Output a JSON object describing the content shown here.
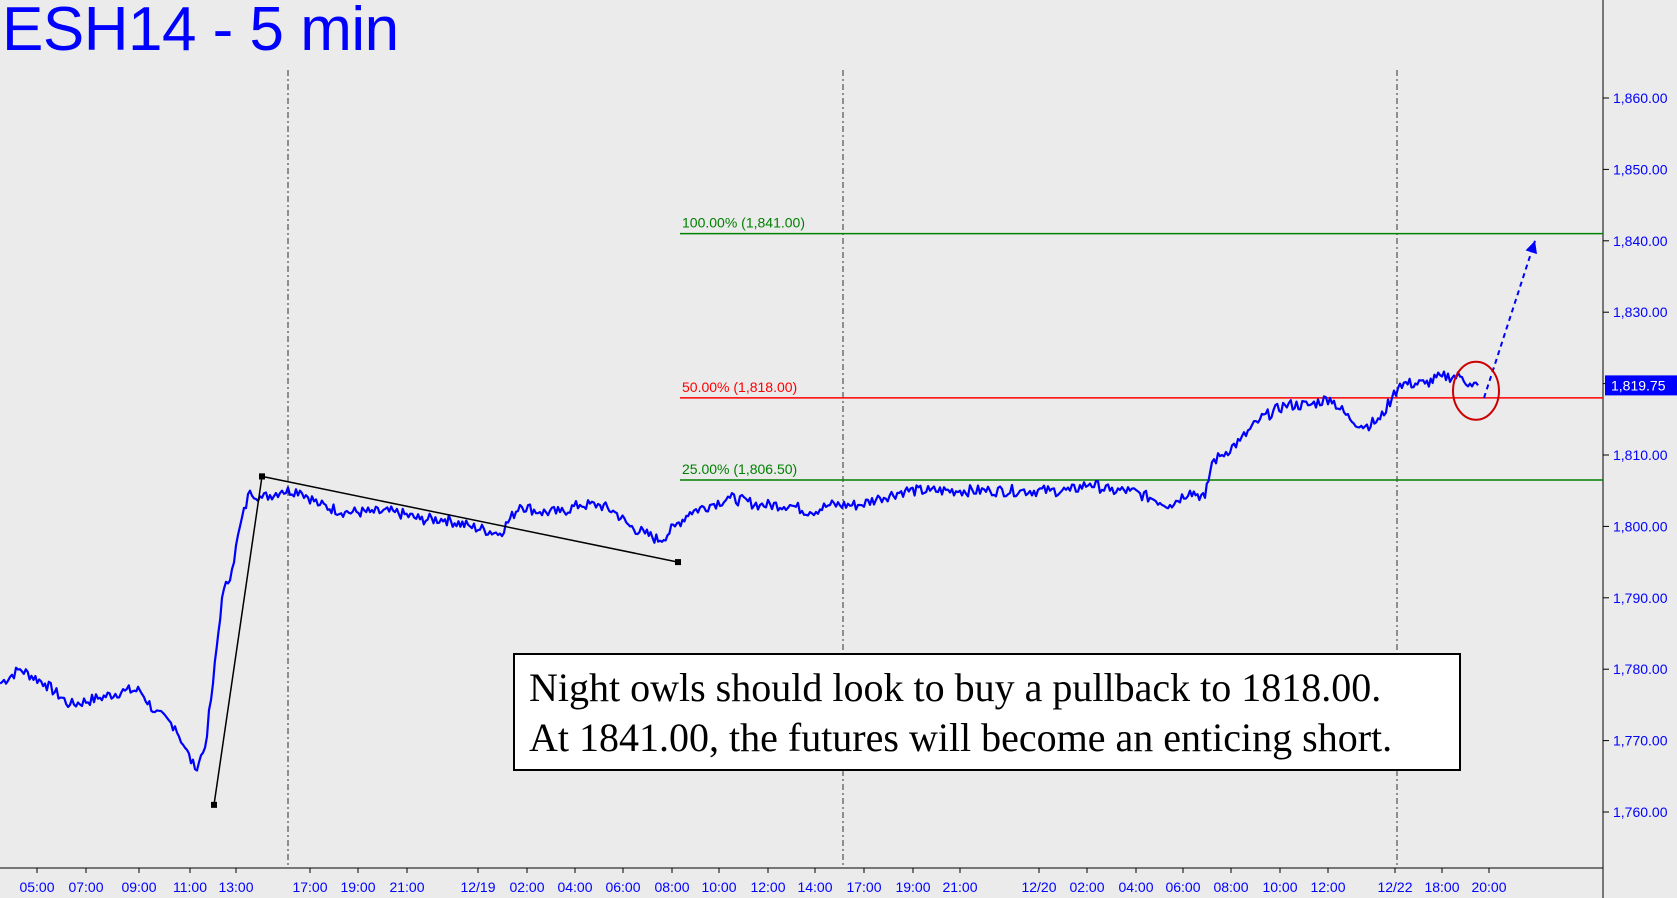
{
  "title": "ESH14 - 5 min",
  "note": {
    "line1": "Night owls should look to buy a pullback to 1818.00.",
    "line2": "At 1841.00, the futures will become an enticing short."
  },
  "colors": {
    "background": "#ebebeb",
    "price_line": "#0000ff",
    "fib_green": "#008000",
    "fib_red": "#ff0000",
    "axis_text": "#0000ff",
    "trendline": "#000000",
    "circle": "#cc0000"
  },
  "chart_data": {
    "type": "line",
    "title": "ESH14 - 5 min",
    "xlabel": "",
    "ylabel": "",
    "ylim": [
      1754,
      1874
    ],
    "y_ticks": [
      "1,760.00",
      "1,770.00",
      "1,780.00",
      "1,790.00",
      "1,800.00",
      "1,810.00",
      "1,820.00",
      "1,830.00",
      "1,840.00",
      "1,850.00",
      "1,860.00"
    ],
    "x_ticks": [
      "05:00",
      "07:00",
      "09:00",
      "11:00",
      "13:00",
      "17:00",
      "19:00",
      "21:00",
      "12/19",
      "02:00",
      "04:00",
      "06:00",
      "08:00",
      "10:00",
      "12:00",
      "14:00",
      "17:00",
      "19:00",
      "21:00",
      "12/20",
      "02:00",
      "04:00",
      "06:00",
      "08:00",
      "10:00",
      "12:00",
      "12/22",
      "18:00",
      "20:00"
    ],
    "last_price": "1,819.75",
    "series": [
      {
        "values": [
          [
            0,
            1778
          ],
          [
            20,
            1780
          ],
          [
            45,
            1778
          ],
          [
            70,
            1775
          ],
          [
            100,
            1776
          ],
          [
            125,
            1777
          ],
          [
            140,
            1777
          ],
          [
            155,
            1774
          ],
          [
            175,
            1772
          ],
          [
            185,
            1769
          ],
          [
            195,
            1766
          ],
          [
            205,
            1769
          ],
          [
            213,
            1778
          ],
          [
            222,
            1790
          ],
          [
            232,
            1794
          ],
          [
            240,
            1800
          ],
          [
            250,
            1805
          ],
          [
            262,
            1804
          ],
          [
            282,
            1805
          ],
          [
            300,
            1805
          ],
          [
            320,
            1803
          ],
          [
            345,
            1802
          ],
          [
            370,
            1802
          ],
          [
            395,
            1802
          ],
          [
            420,
            1801
          ],
          [
            445,
            1801
          ],
          [
            470,
            1800
          ],
          [
            500,
            1799
          ],
          [
            520,
            1803
          ],
          [
            540,
            1802
          ],
          [
            560,
            1802
          ],
          [
            580,
            1803
          ],
          [
            600,
            1803
          ],
          [
            615,
            1802
          ],
          [
            630,
            1800
          ],
          [
            645,
            1799
          ],
          [
            660,
            1798
          ],
          [
            675,
            1800
          ],
          [
            690,
            1802
          ],
          [
            710,
            1803
          ],
          [
            730,
            1804
          ],
          [
            760,
            1803
          ],
          [
            790,
            1803
          ],
          [
            810,
            1802
          ],
          [
            830,
            1803
          ],
          [
            860,
            1803
          ],
          [
            880,
            1804
          ],
          [
            905,
            1805
          ],
          [
            930,
            1805
          ],
          [
            960,
            1805
          ],
          [
            990,
            1805
          ],
          [
            1020,
            1805
          ],
          [
            1050,
            1805
          ],
          [
            1070,
            1805
          ],
          [
            1090,
            1806
          ],
          [
            1110,
            1805
          ],
          [
            1130,
            1805
          ],
          [
            1150,
            1804
          ],
          [
            1170,
            1803
          ],
          [
            1190,
            1805
          ],
          [
            1205,
            1804
          ],
          [
            1212,
            1809
          ],
          [
            1222,
            1810
          ],
          [
            1240,
            1812
          ],
          [
            1260,
            1815
          ],
          [
            1285,
            1817
          ],
          [
            1310,
            1817
          ],
          [
            1330,
            1818
          ],
          [
            1350,
            1815
          ],
          [
            1365,
            1814
          ],
          [
            1380,
            1815
          ],
          [
            1392,
            1818
          ],
          [
            1400,
            1820
          ],
          [
            1425,
            1820
          ],
          [
            1442,
            1821
          ],
          [
            1460,
            1821
          ],
          [
            1470,
            1820
          ],
          [
            1478,
            1819.75
          ]
        ]
      }
    ],
    "fib_levels": [
      {
        "label": "100.00% (1,841.00)",
        "value": 1841.0,
        "color": "#008000"
      },
      {
        "label": "50.00% (1,818.00)",
        "value": 1818.0,
        "color": "#ff0000"
      },
      {
        "label": "25.00% (1,806.50)",
        "value": 1806.5,
        "color": "#008000"
      }
    ],
    "annotations": [
      {
        "kind": "trendline",
        "points": [
          [
            214,
            1761
          ],
          [
            262,
            1807
          ]
        ]
      },
      {
        "kind": "trendline",
        "points": [
          [
            262,
            1807
          ],
          [
            678,
            1795
          ]
        ]
      },
      {
        "kind": "projection-arrow",
        "points": [
          [
            1484,
            1818
          ],
          [
            1535,
            1840
          ]
        ]
      },
      {
        "kind": "circle",
        "center": [
          1476,
          1819
        ]
      }
    ],
    "grid": false,
    "legend": "none"
  }
}
